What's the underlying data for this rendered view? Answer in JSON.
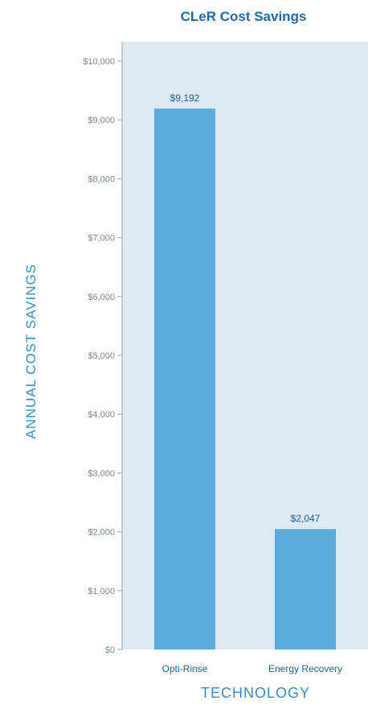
{
  "chart_data": {
    "type": "bar",
    "title": "CLeR Cost Savings",
    "xlabel": "TECHNOLOGY",
    "ylabel": "ANNUAL COST SAVINGS",
    "categories": [
      "Opti-Rinse",
      "Energy Recovery"
    ],
    "values": [
      9192,
      2047
    ],
    "value_labels": [
      "$9,192",
      "$2,047"
    ],
    "ylim": [
      0,
      10000
    ],
    "yticks": [
      0,
      1000,
      2000,
      3000,
      4000,
      5000,
      6000,
      7000,
      8000,
      9000,
      10000
    ],
    "ytick_labels": [
      "$0",
      "$1,000",
      "$2,000",
      "$3,000",
      "$4,000",
      "$5,000",
      "$6,000",
      "$7,000",
      "$8,000",
      "$9,000",
      "$10,000"
    ],
    "grid": false,
    "legend": "none"
  },
  "colors": {
    "bar": "#5aaddb",
    "plot_background": "#dde9f5",
    "title": "#1f6aa8",
    "axis_title": "#3a8cc9",
    "category_label": "#1f5f94",
    "value_label": "#1f5f94",
    "tick_label": "#7a8896",
    "axis_line": "#9aa6b2"
  }
}
